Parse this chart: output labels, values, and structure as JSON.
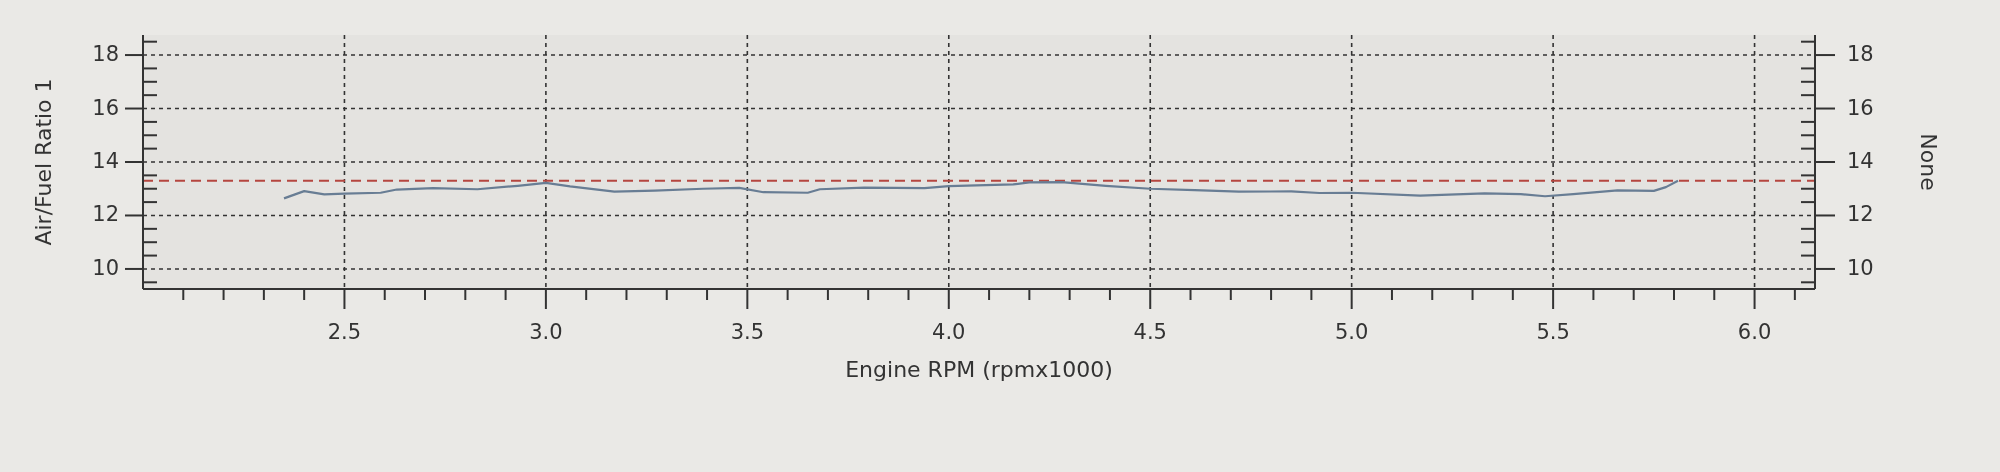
{
  "chart_data": {
    "type": "line",
    "xlabel": "Engine RPM (rpmx1000)",
    "ylabel": "Air/Fuel Ratio 1",
    "y2label": "None",
    "x": [
      2.35,
      2.4,
      2.45,
      2.5,
      2.59,
      2.63,
      2.72,
      2.83,
      2.93,
      3.0,
      3.06,
      3.17,
      3.27,
      3.39,
      3.48,
      3.54,
      3.65,
      3.68,
      3.79,
      3.94,
      4.0,
      4.16,
      4.2,
      4.28,
      4.39,
      4.5,
      4.61,
      4.72,
      4.85,
      4.92,
      5.0,
      5.17,
      5.33,
      5.42,
      5.48,
      5.55,
      5.66,
      5.75,
      5.78,
      5.81
    ],
    "series": [
      {
        "color": "#687d94",
        "values": [
          12.64,
          12.91,
          12.79,
          12.82,
          12.85,
          12.97,
          13.02,
          12.98,
          13.11,
          13.22,
          13.09,
          12.89,
          12.93,
          13.0,
          13.03,
          12.87,
          12.85,
          12.98,
          13.04,
          13.02,
          13.1,
          13.16,
          13.24,
          13.25,
          13.11,
          13.0,
          12.95,
          12.89,
          12.9,
          12.84,
          12.85,
          12.74,
          12.83,
          12.8,
          12.72,
          12.8,
          12.94,
          12.92,
          13.06,
          13.3
        ]
      }
    ],
    "xlim": [
      2.0,
      6.15
    ],
    "xticks": [
      {
        "value": 2.1,
        "label": null
      },
      {
        "value": 2.2,
        "label": null
      },
      {
        "value": 2.3,
        "label": null
      },
      {
        "value": 2.4,
        "label": null
      },
      2.5,
      {
        "value": 2.6,
        "label": null
      },
      {
        "value": 2.7,
        "label": null
      },
      {
        "value": 2.8,
        "label": null
      },
      {
        "value": 2.9,
        "label": null
      },
      {
        "value": 3,
        "label": "3.0"
      },
      {
        "value": 3.1,
        "label": null
      },
      {
        "value": 3.2,
        "label": null
      },
      {
        "value": 3.3,
        "label": null
      },
      {
        "value": 3.4,
        "label": null
      },
      3.5,
      {
        "value": 3.6,
        "label": null
      },
      {
        "value": 3.7,
        "label": null
      },
      {
        "value": 3.8,
        "label": null
      },
      {
        "value": 3.9,
        "label": null
      },
      {
        "value": 4,
        "label": "4.0"
      },
      {
        "value": 4.1,
        "label": null
      },
      {
        "value": 4.2,
        "label": null
      },
      {
        "value": 4.3,
        "label": null
      },
      {
        "value": 4.4,
        "label": null
      },
      4.5,
      {
        "value": 4.6,
        "label": null
      },
      {
        "value": 4.7,
        "label": null
      },
      {
        "value": 4.8,
        "label": null
      },
      {
        "value": 4.9,
        "label": null
      },
      {
        "value": 5,
        "label": "5.0"
      },
      {
        "value": 5.1,
        "label": null
      },
      {
        "value": 5.2,
        "label": null
      },
      {
        "value": 5.3,
        "label": null
      },
      {
        "value": 5.4,
        "label": null
      },
      5.5,
      {
        "value": 5.6,
        "label": null
      },
      {
        "value": 5.7,
        "label": null
      },
      {
        "value": 5.8,
        "label": null
      },
      {
        "value": 5.9,
        "label": null
      },
      {
        "value": 6,
        "label": "6.0"
      },
      {
        "value": 6.1,
        "label": null
      }
    ],
    "ylim": [
      9.25,
      18.75
    ],
    "yticks": [
      {
        "value": 9.5,
        "label": null
      },
      10,
      {
        "value": 10.5,
        "label": null
      },
      {
        "value": 11,
        "label": null
      },
      {
        "value": 11.5,
        "label": null
      },
      12,
      {
        "value": 12.5,
        "label": null
      },
      {
        "value": 13,
        "label": null
      },
      {
        "value": 13.5,
        "label": null
      },
      14,
      {
        "value": 14.5,
        "label": null
      },
      {
        "value": 15,
        "label": null
      },
      {
        "value": 15.5,
        "label": null
      },
      16,
      {
        "value": 16.5,
        "label": null
      },
      {
        "value": 17,
        "label": null
      },
      {
        "value": 17.5,
        "label": null
      },
      18,
      {
        "value": 18.5,
        "label": null
      }
    ],
    "y2lim": [
      9.25,
      18.75
    ],
    "y2ticks": [
      {
        "value": 9.5,
        "label": null
      },
      10,
      {
        "value": 10.5,
        "label": null
      },
      {
        "value": 11,
        "label": null
      },
      {
        "value": 11.5,
        "label": null
      },
      12,
      {
        "value": 12.5,
        "label": null
      },
      {
        "value": 13,
        "label": null
      },
      {
        "value": 13.5,
        "label": null
      },
      14,
      {
        "value": 14.5,
        "label": null
      },
      {
        "value": 15,
        "label": null
      },
      {
        "value": 15.5,
        "label": null
      },
      16,
      {
        "value": 16.5,
        "label": null
      },
      {
        "value": 17,
        "label": null
      },
      {
        "value": 17.5,
        "label": null
      },
      18,
      {
        "value": 18.5,
        "label": null
      }
    ],
    "ref_lines": [
      {
        "axis": "y",
        "value": 13.3,
        "color": "#b5463f",
        "line_style": "dashed"
      }
    ],
    "grid": true,
    "marker": "none",
    "line_style": "solid"
  }
}
